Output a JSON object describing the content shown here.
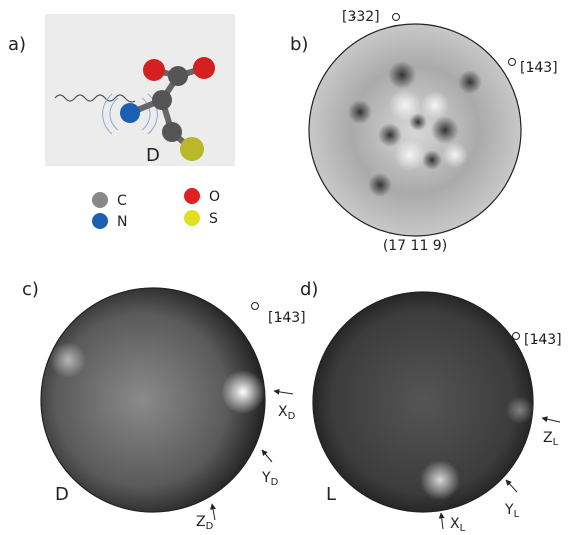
{
  "panel_a": {
    "label": "a)",
    "molecule_label": "D",
    "legend": [
      {
        "symbol": "C"
      },
      {
        "symbol": "O"
      },
      {
        "symbol": "N"
      },
      {
        "symbol": "S"
      }
    ]
  },
  "panel_b": {
    "label": "b)",
    "direction_top": "[3̵32]",
    "direction_right": "[1̵4̵3]",
    "direction_bottom": "(17 11 9)"
  },
  "panel_c": {
    "label": "c)",
    "direction": "[1̵4̵3]",
    "handedness": "D",
    "axes": [
      {
        "main": "X",
        "sub": "D"
      },
      {
        "main": "Y",
        "sub": "D"
      },
      {
        "main": "Z",
        "sub": "D"
      }
    ]
  },
  "panel_d": {
    "label": "d)",
    "direction": "[1̵4̵3]",
    "handedness": "L",
    "axes": [
      {
        "main": "Z",
        "sub": "L"
      },
      {
        "main": "Y",
        "sub": "L"
      },
      {
        "main": "X",
        "sub": "L"
      }
    ]
  }
}
